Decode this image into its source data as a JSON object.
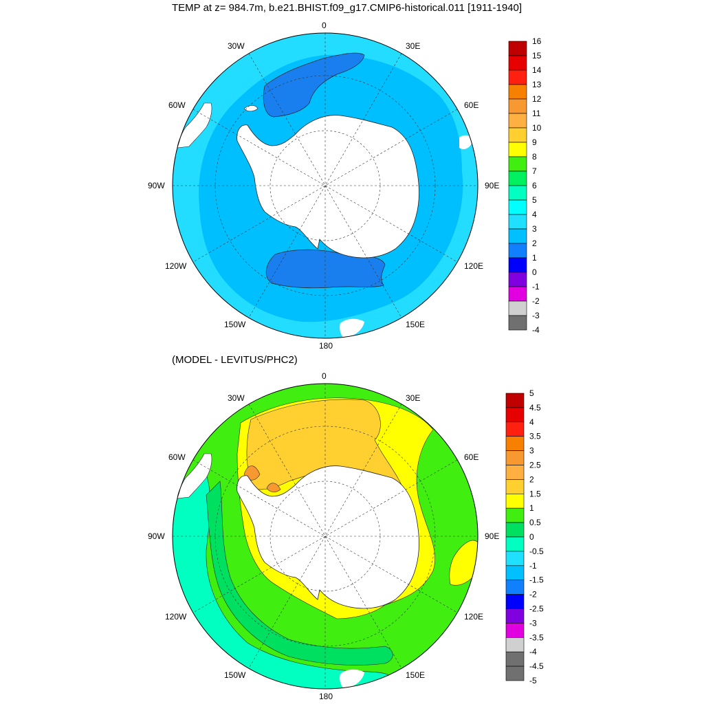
{
  "top_panel": {
    "title": "TEMP at z= 984.7m, b.e21.BHIST.f09_g17.CMIP6-historical.011 [1911-1940]",
    "lon_labels": {
      "n": "0",
      "nw": "30W",
      "ne": "30E",
      "wnw": "60W",
      "ene": "60E",
      "w": "90W",
      "e": "90E",
      "wsw": "120W",
      "ese": "120E",
      "sw": "150W",
      "se": "150E",
      "s": "180"
    },
    "colorbar": {
      "labels": [
        "16",
        "15",
        "14",
        "13",
        "12",
        "11",
        "10",
        "9",
        "8",
        "7",
        "6",
        "5",
        "4",
        "3",
        "2",
        "1",
        "0",
        "-1",
        "-2",
        "-3",
        "-4"
      ],
      "colors": [
        "#c00000",
        "#e60000",
        "#ff2010",
        "#f88000",
        "#f89830",
        "#ffb040",
        "#ffd030",
        "#ffff00",
        "#40ee10",
        "#00f060",
        "#00ffc0",
        "#00ffff",
        "#20e0ff",
        "#00c0ff",
        "#1080ff",
        "#0000ff",
        "#8000e0",
        "#e000e0",
        "#d0d0d0",
        "#707070"
      ]
    },
    "ocean_color": "#00bfff",
    "outer_ring_color": "#22ddff",
    "deep_pool_color": "#1a7fee"
  },
  "bottom_panel": {
    "title": "(MODEL - LEVITUS/PHC2)",
    "lon_labels": {
      "n": "0",
      "nw": "30W",
      "ne": "30E",
      "wnw": "60W",
      "ene": "60E",
      "w": "90W",
      "e": "90E",
      "wsw": "120W",
      "ese": "120E",
      "sw": "150W",
      "se": "150E",
      "s": "180"
    },
    "colorbar": {
      "labels": [
        "5",
        "4.5",
        "4",
        "3.5",
        "3",
        "2.5",
        "2",
        "1.5",
        "1",
        "0.5",
        "0",
        "-0.5",
        "-1",
        "-1.5",
        "-2",
        "-2.5",
        "-3",
        "-3.5",
        "-4",
        "-4.5",
        "-5"
      ],
      "colors": [
        "#c00000",
        "#e60000",
        "#ff2010",
        "#f88000",
        "#f89830",
        "#ffb040",
        "#ffd030",
        "#ffff00",
        "#40ee10",
        "#00e060",
        "#00ffc0",
        "#20e0ff",
        "#00c0ff",
        "#1080ff",
        "#0000ff",
        "#8000e0",
        "#e000e0",
        "#d0d0d0",
        "#707070",
        "#707070"
      ]
    }
  }
}
